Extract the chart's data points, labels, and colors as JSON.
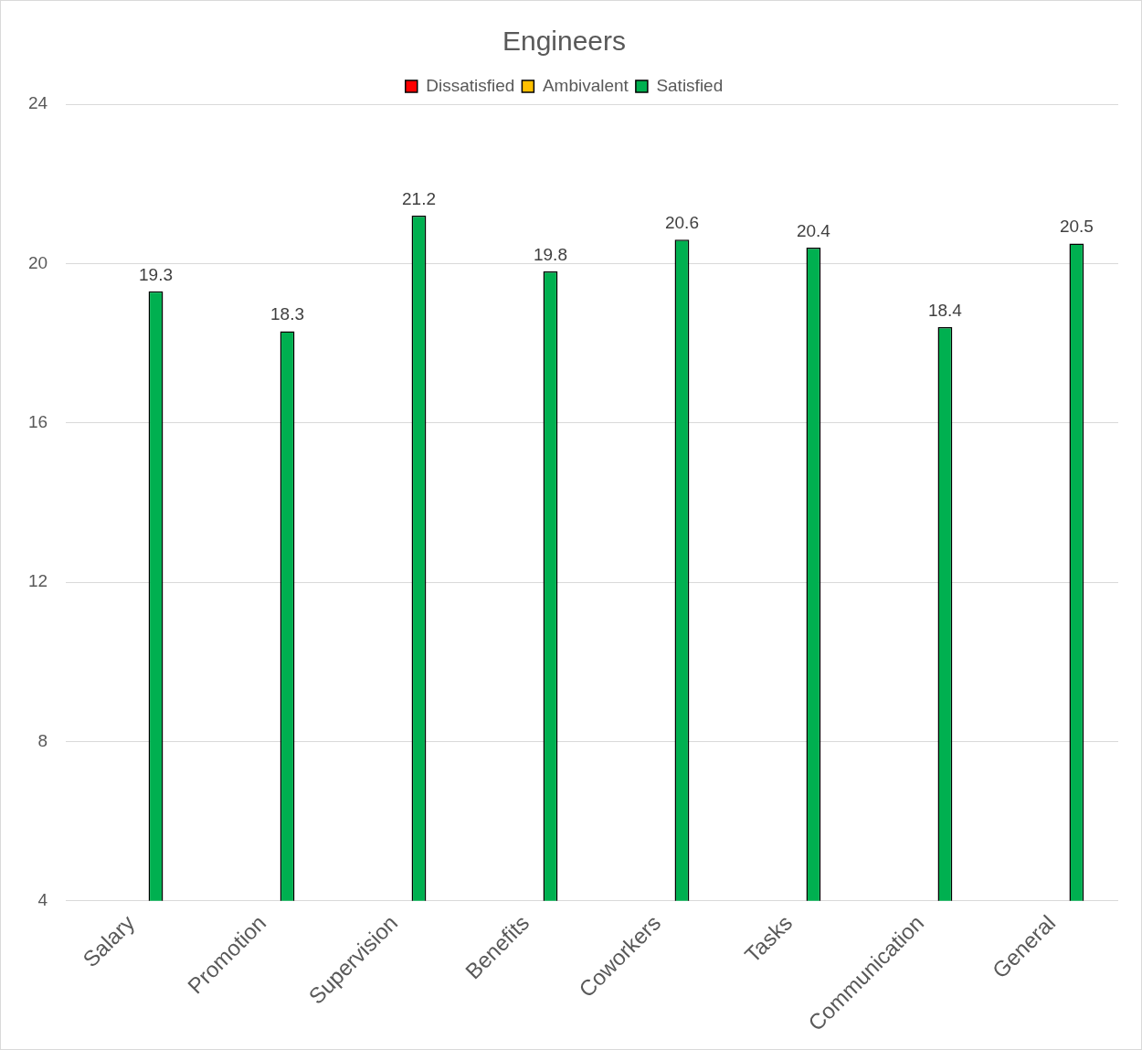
{
  "chart_data": {
    "type": "bar",
    "title": "Engineers",
    "categories": [
      "Salary",
      "Promotion",
      "Supervision",
      "Benefits",
      "Coworkers",
      "Tasks",
      "Communication",
      "General"
    ],
    "series": [
      {
        "name": "Dissatisfied",
        "color": "#ff0000",
        "values": [
          null,
          null,
          null,
          null,
          null,
          null,
          null,
          null
        ]
      },
      {
        "name": "Ambivalent",
        "color": "#ffc000",
        "values": [
          null,
          null,
          null,
          null,
          null,
          null,
          null,
          null
        ]
      },
      {
        "name": "Satisfied",
        "color": "#00b050",
        "values": [
          19.3,
          18.3,
          21.2,
          19.8,
          20.6,
          20.4,
          18.4,
          20.5
        ]
      }
    ],
    "ylim": [
      4,
      24
    ],
    "yticks": [
      4,
      8,
      12,
      16,
      20,
      24
    ],
    "grid": "y",
    "legend": "top",
    "data_labels": true
  }
}
